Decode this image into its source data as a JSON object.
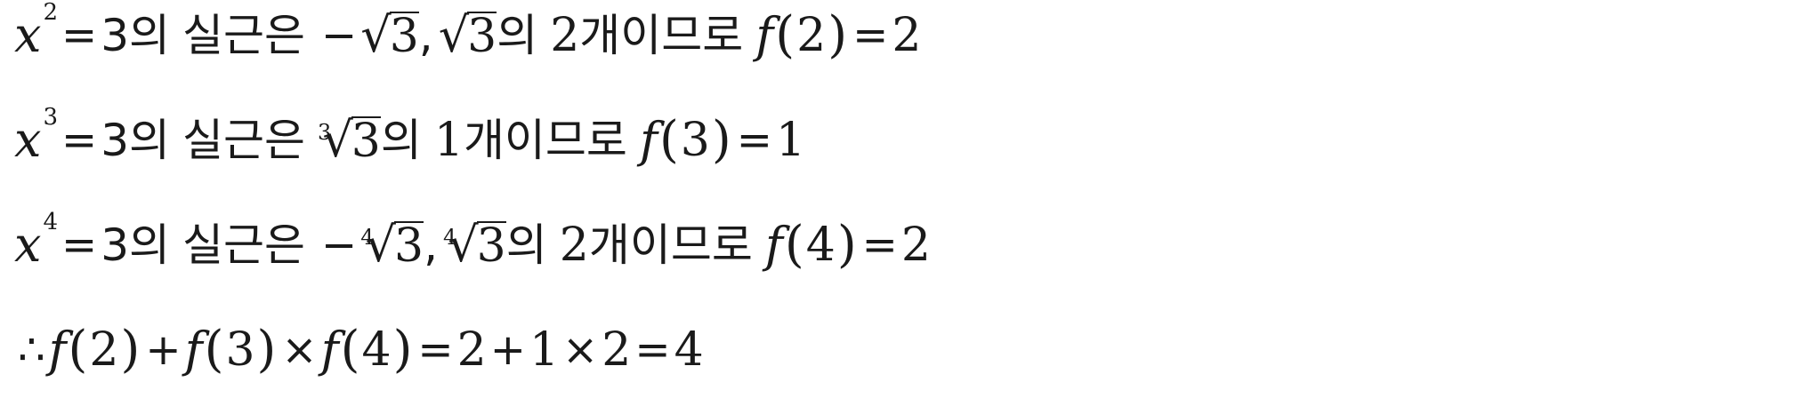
{
  "lines": [
    {
      "var": "x",
      "exp": "2",
      "eq": "=",
      "rhs": "3",
      "particle_of": "의",
      "phrase_real_roots": "실근은",
      "minus": "−",
      "radical_sign": "√",
      "radicand": "3",
      "comma": ",",
      "particle_of_2": "의",
      "count": "2",
      "count_phrase": "개이므로",
      "func": "f",
      "lparen": "(",
      "arg": "2",
      "rparen": ")",
      "eq2": "=",
      "result": "2"
    },
    {
      "var": "x",
      "exp": "3",
      "eq": "=",
      "rhs": "3",
      "particle_of": "의",
      "phrase_real_roots": "실근은",
      "root_index": "3",
      "radical_sign": "√",
      "radicand": "3",
      "particle_of_2": "의",
      "count": "1",
      "count_phrase": "개이므로",
      "func": "f",
      "lparen": "(",
      "arg": "3",
      "rparen": ")",
      "eq2": "=",
      "result": "1"
    },
    {
      "var": "x",
      "exp": "4",
      "eq": "=",
      "rhs": "3",
      "particle_of": "의",
      "phrase_real_roots": "실근은",
      "minus": "−",
      "root_index": "4",
      "radical_sign": "√",
      "radicand": "3",
      "comma": ",",
      "particle_of_2": "의",
      "count": "2",
      "count_phrase": "개이므로",
      "func": "f",
      "lparen": "(",
      "arg": "4",
      "rparen": ")",
      "eq2": "=",
      "result": "2"
    }
  ],
  "conclusion": {
    "therefore": "∴",
    "func": "f",
    "lparen": "(",
    "rparen": ")",
    "arg1": "2",
    "plus": "+",
    "arg2": "3",
    "times": "×",
    "arg3": "4",
    "eq": "=",
    "v1": "2",
    "plus2": "+",
    "v2": "1",
    "times2": "×",
    "v3": "2",
    "eq2": "=",
    "answer": "4"
  }
}
